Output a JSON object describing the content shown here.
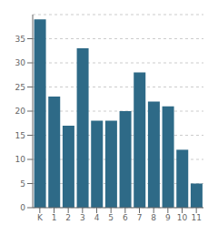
{
  "chart_data": {
    "type": "bar",
    "categories": [
      "K",
      "1",
      "2",
      "3",
      "4",
      "5",
      "6",
      "7",
      "8",
      "9",
      "10",
      "11"
    ],
    "values": [
      39,
      23,
      17,
      33,
      18,
      18,
      20,
      28,
      22,
      21,
      12,
      5
    ],
    "color": "#2e6a87",
    "ylim": [
      0,
      40
    ],
    "yticks": [
      0,
      5,
      10,
      15,
      20,
      25,
      30,
      35
    ],
    "grid": true
  }
}
